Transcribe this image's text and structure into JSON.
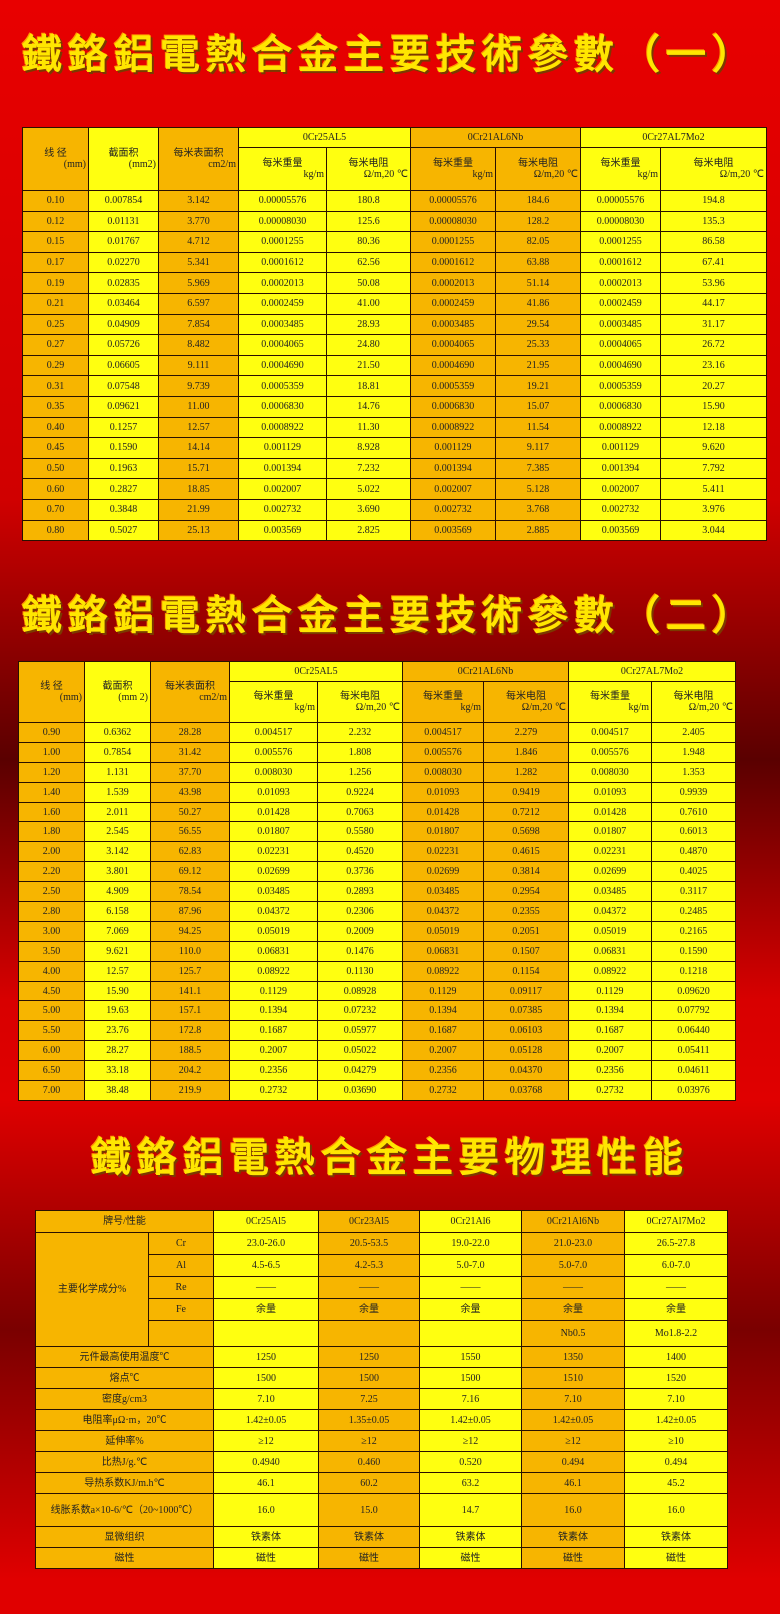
{
  "colors": {
    "background": "#e00000",
    "title": "#ffe600",
    "cell_orange": "#f7b500",
    "cell_yellow": "#ffff10"
  },
  "table1": {
    "title": "鐵鉻鋁電熱合金主要技術參數（一）",
    "headers": {
      "diameter": "线 径",
      "diameter_unit": "(mm)",
      "area": "截面积",
      "area_unit": "(mm2)",
      "surface": "每米表面积",
      "surface_unit": "cm2/m",
      "weight": "每米重量",
      "weight_unit": "kg/m",
      "resistance": "每米电阻",
      "resistance_unit": "Ω/m,20 ℃"
    },
    "groups": [
      "0Cr25AL5",
      "0Cr21AL6Nb",
      "0Cr27AL7Mo2"
    ],
    "rows": [
      [
        "0.10",
        "0.007854",
        "3.142",
        "0.00005576",
        "180.8",
        "0.00005576",
        "184.6",
        "0.00005576",
        "194.8"
      ],
      [
        "0.12",
        "0.01131",
        "3.770",
        "0.00008030",
        "125.6",
        "0.00008030",
        "128.2",
        "0.00008030",
        "135.3"
      ],
      [
        "0.15",
        "0.01767",
        "4.712",
        "0.0001255",
        "80.36",
        "0.0001255",
        "82.05",
        "0.0001255",
        "86.58"
      ],
      [
        "0.17",
        "0.02270",
        "5.341",
        "0.0001612",
        "62.56",
        "0.0001612",
        "63.88",
        "0.0001612",
        "67.41"
      ],
      [
        "0.19",
        "0.02835",
        "5.969",
        "0.0002013",
        "50.08",
        "0.0002013",
        "51.14",
        "0.0002013",
        "53.96"
      ],
      [
        "0.21",
        "0.03464",
        "6.597",
        "0.0002459",
        "41.00",
        "0.0002459",
        "41.86",
        "0.0002459",
        "44.17"
      ],
      [
        "0.25",
        "0.04909",
        "7.854",
        "0.0003485",
        "28.93",
        "0.0003485",
        "29.54",
        "0.0003485",
        "31.17"
      ],
      [
        "0.27",
        "0.05726",
        "8.482",
        "0.0004065",
        "24.80",
        "0.0004065",
        "25.33",
        "0.0004065",
        "26.72"
      ],
      [
        "0.29",
        "0.06605",
        "9.111",
        "0.0004690",
        "21.50",
        "0.0004690",
        "21.95",
        "0.0004690",
        "23.16"
      ],
      [
        "0.31",
        "0.07548",
        "9.739",
        "0.0005359",
        "18.81",
        "0.0005359",
        "19.21",
        "0.0005359",
        "20.27"
      ],
      [
        "0.35",
        "0.09621",
        "11.00",
        "0.0006830",
        "14.76",
        "0.0006830",
        "15.07",
        "0.0006830",
        "15.90"
      ],
      [
        "0.40",
        "0.1257",
        "12.57",
        "0.0008922",
        "11.30",
        "0.0008922",
        "11.54",
        "0.0008922",
        "12.18"
      ],
      [
        "0.45",
        "0.1590",
        "14.14",
        "0.001129",
        "8.928",
        "0.001129",
        "9.117",
        "0.001129",
        "9.620"
      ],
      [
        "0.50",
        "0.1963",
        "15.71",
        "0.001394",
        "7.232",
        "0.001394",
        "7.385",
        "0.001394",
        "7.792"
      ],
      [
        "0.60",
        "0.2827",
        "18.85",
        "0.002007",
        "5.022",
        "0.002007",
        "5.128",
        "0.002007",
        "5.411"
      ],
      [
        "0.70",
        "0.3848",
        "21.99",
        "0.002732",
        "3.690",
        "0.002732",
        "3.768",
        "0.002732",
        "3.976"
      ],
      [
        "0.80",
        "0.5027",
        "25.13",
        "0.003569",
        "2.825",
        "0.003569",
        "2.885",
        "0.003569",
        "3.044"
      ]
    ]
  },
  "table2": {
    "title": "鐵鉻鋁電熱合金主要技術參數（二）",
    "headers": {
      "diameter": "线 径",
      "diameter_unit": "(mm)",
      "area": "截面积",
      "area_unit": "(mm 2)",
      "surface": "每米表面积",
      "surface_unit": "cm2/m",
      "weight": "每米重量",
      "weight_unit": "kg/m",
      "resistance": "每米电阻",
      "resistance_unit": "Ω/m,20 ℃"
    },
    "groups": [
      "0Cr25AL5",
      "0Cr21AL6Nb",
      "0Cr27AL7Mo2"
    ],
    "rows": [
      [
        "0.90",
        "0.6362",
        "28.28",
        "0.004517",
        "2.232",
        "0.004517",
        "2.279",
        "0.004517",
        "2.405"
      ],
      [
        "1.00",
        "0.7854",
        "31.42",
        "0.005576",
        "1.808",
        "0.005576",
        "1.846",
        "0.005576",
        "1.948"
      ],
      [
        "1.20",
        "1.131",
        "37.70",
        "0.008030",
        "1.256",
        "0.008030",
        "1.282",
        "0.008030",
        "1.353"
      ],
      [
        "1.40",
        "1.539",
        "43.98",
        "0.01093",
        "0.9224",
        "0.01093",
        "0.9419",
        "0.01093",
        "0.9939"
      ],
      [
        "1.60",
        "2.011",
        "50.27",
        "0.01428",
        "0.7063",
        "0.01428",
        "0.7212",
        "0.01428",
        "0.7610"
      ],
      [
        "1.80",
        "2.545",
        "56.55",
        "0.01807",
        "0.5580",
        "0.01807",
        "0.5698",
        "0.01807",
        "0.6013"
      ],
      [
        "2.00",
        "3.142",
        "62.83",
        "0.02231",
        "0.4520",
        "0.02231",
        "0.4615",
        "0.02231",
        "0.4870"
      ],
      [
        "2.20",
        "3.801",
        "69.12",
        "0.02699",
        "0.3736",
        "0.02699",
        "0.3814",
        "0.02699",
        "0.4025"
      ],
      [
        "2.50",
        "4.909",
        "78.54",
        "0.03485",
        "0.2893",
        "0.03485",
        "0.2954",
        "0.03485",
        "0.3117"
      ],
      [
        "2.80",
        "6.158",
        "87.96",
        "0.04372",
        "0.2306",
        "0.04372",
        "0.2355",
        "0.04372",
        "0.2485"
      ],
      [
        "3.00",
        "7.069",
        "94.25",
        "0.05019",
        "0.2009",
        "0.05019",
        "0.2051",
        "0.05019",
        "0.2165"
      ],
      [
        "3.50",
        "9.621",
        "110.0",
        "0.06831",
        "0.1476",
        "0.06831",
        "0.1507",
        "0.06831",
        "0.1590"
      ],
      [
        "4.00",
        "12.57",
        "125.7",
        "0.08922",
        "0.1130",
        "0.08922",
        "0.1154",
        "0.08922",
        "0.1218"
      ],
      [
        "4.50",
        "15.90",
        "141.1",
        "0.1129",
        "0.08928",
        "0.1129",
        "0.09117",
        "0.1129",
        "0.09620"
      ],
      [
        "5.00",
        "19.63",
        "157.1",
        "0.1394",
        "0.07232",
        "0.1394",
        "0.07385",
        "0.1394",
        "0.07792"
      ],
      [
        "5.50",
        "23.76",
        "172.8",
        "0.1687",
        "0.05977",
        "0.1687",
        "0.06103",
        "0.1687",
        "0.06440"
      ],
      [
        "6.00",
        "28.27",
        "188.5",
        "0.2007",
        "0.05022",
        "0.2007",
        "0.05128",
        "0.2007",
        "0.05411"
      ],
      [
        "6.50",
        "33.18",
        "204.2",
        "0.2356",
        "0.04279",
        "0.2356",
        "0.04370",
        "0.2356",
        "0.04611"
      ],
      [
        "7.00",
        "38.48",
        "219.9",
        "0.2732",
        "0.03690",
        "0.2732",
        "0.03768",
        "0.2732",
        "0.03976"
      ]
    ]
  },
  "table3": {
    "title": "鐵鉻鋁電熱合金主要物理性能",
    "header_label": "牌号/性能",
    "grades": [
      "0Cr25Al5",
      "0Cr23Al5",
      "0Cr21Al6",
      "0Cr21Al6Nb",
      "0Cr27Al7Mo2"
    ],
    "composition_label": "主要化学成分%",
    "composition": [
      {
        "element": "Cr",
        "values": [
          "23.0-26.0",
          "20.5-53.5",
          "19.0-22.0",
          "21.0-23.0",
          "26.5-27.8"
        ]
      },
      {
        "element": "Al",
        "values": [
          "4.5-6.5",
          "4.2-5.3",
          "5.0-7.0",
          "5.0-7.0",
          "6.0-7.0"
        ]
      },
      {
        "element": "Re",
        "values": [
          "——",
          "——",
          "——",
          "——",
          "——"
        ]
      },
      {
        "element": "Fe",
        "values": [
          "余量",
          "余量",
          "余量",
          "余量",
          "余量"
        ]
      },
      {
        "element": "",
        "values": [
          "",
          "",
          "",
          "Nb0.5",
          "Mo1.8-2.2"
        ]
      }
    ],
    "properties": [
      {
        "label": "元件最高使用温度℃",
        "values": [
          "1250",
          "1250",
          "1550",
          "1350",
          "1400"
        ]
      },
      {
        "label": "熔点℃",
        "values": [
          "1500",
          "1500",
          "1500",
          "1510",
          "1520"
        ]
      },
      {
        "label": "密度g/cm3",
        "values": [
          "7.10",
          "7.25",
          "7.16",
          "7.10",
          "7.10"
        ]
      },
      {
        "label": "电阻率μΩ·m，20℃",
        "values": [
          "1.42±0.05",
          "1.35±0.05",
          "1.42±0.05",
          "1.42±0.05",
          "1.42±0.05"
        ]
      },
      {
        "label": "延伸率%",
        "values": [
          "≥12",
          "≥12",
          "≥12",
          "≥12",
          "≥10"
        ]
      },
      {
        "label": "比热J/g.℃",
        "values": [
          "0.4940",
          "0.460",
          "0.520",
          "0.494",
          "0.494"
        ]
      },
      {
        "label": "导热系数KJ/m.h℃",
        "values": [
          "46.1",
          "60.2",
          "63.2",
          "46.1",
          "45.2"
        ]
      },
      {
        "label": "线胀系数a×10-6/℃（20~1000℃）",
        "values": [
          "16.0",
          "15.0",
          "14.7",
          "16.0",
          "16.0"
        ]
      },
      {
        "label": "显微组织",
        "values": [
          "铁素体",
          "铁素体",
          "铁素体",
          "铁素体",
          "铁素体"
        ]
      },
      {
        "label": "磁性",
        "values": [
          "磁性",
          "磁性",
          "磁性",
          "磁性",
          "磁性"
        ]
      }
    ]
  }
}
